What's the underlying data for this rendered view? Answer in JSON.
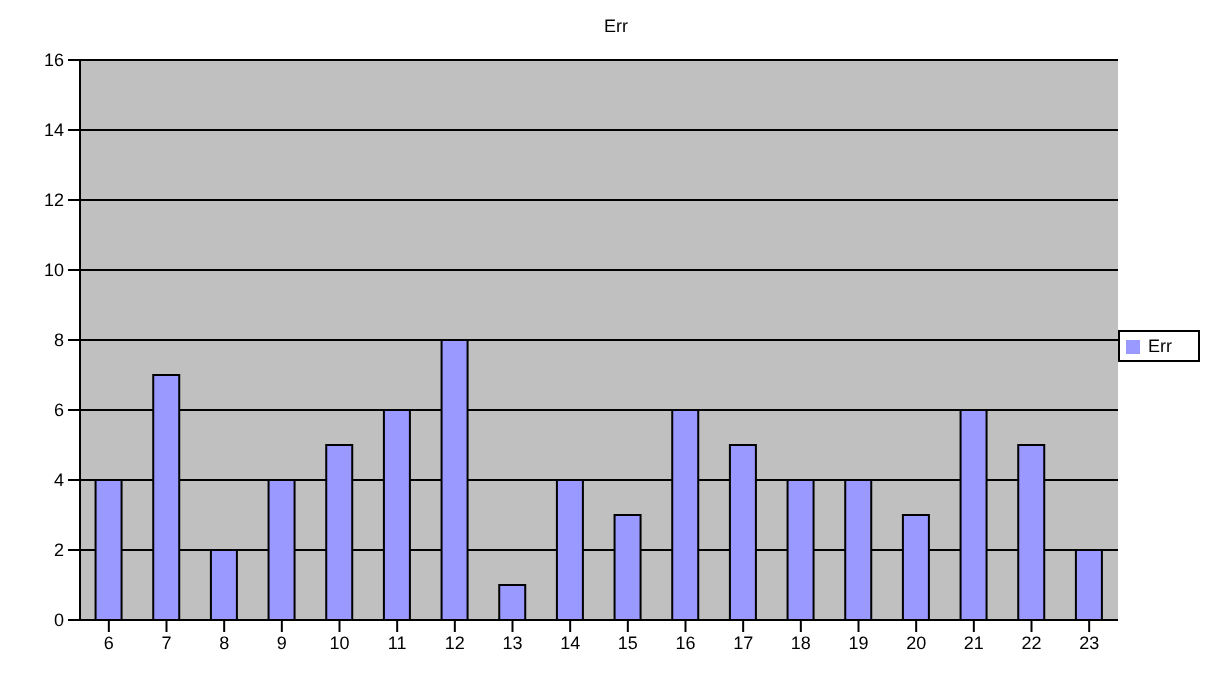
{
  "chart_data": {
    "type": "bar",
    "title": "Err",
    "categories": [
      "6",
      "7",
      "8",
      "9",
      "10",
      "11",
      "12",
      "13",
      "14",
      "15",
      "16",
      "17",
      "18",
      "19",
      "20",
      "21",
      "22",
      "23"
    ],
    "series": [
      {
        "name": "Err",
        "color": "#9999ff",
        "values": [
          4,
          7,
          2,
          4,
          5,
          6,
          8,
          1,
          4,
          3,
          6,
          5,
          4,
          4,
          3,
          6,
          5,
          2
        ]
      }
    ],
    "ylim": [
      0,
      16
    ],
    "yticks": [
      0,
      2,
      4,
      6,
      8,
      10,
      12,
      14,
      16
    ],
    "grid": "y",
    "legend": "right"
  }
}
